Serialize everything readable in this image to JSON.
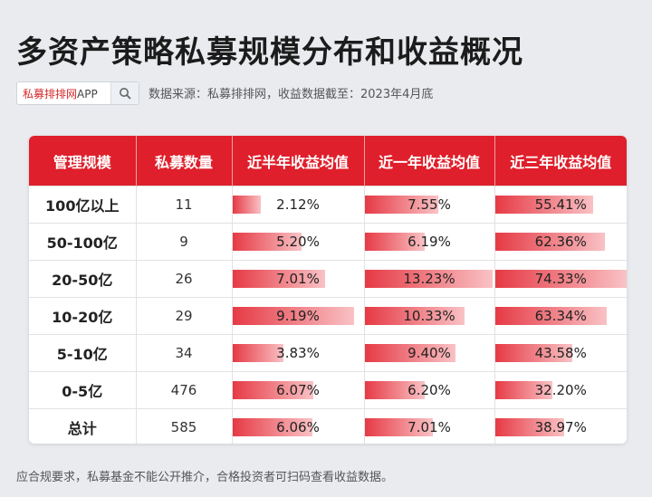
{
  "title": "多资产策略私募规模分布和收益概况",
  "search": {
    "brand": "私募排排网",
    "app": "APP"
  },
  "source": "数据来源：私募排排网，收益数据截至：2023年4月底",
  "table": {
    "headers": [
      "管理规模",
      "私募数量",
      "近半年收益均值",
      "近一年收益均值",
      "近三年收益均值"
    ],
    "rows": [
      {
        "scale": "100亿以上",
        "count": "11",
        "half": "2.12%",
        "one": "7.55%",
        "three": "55.41%"
      },
      {
        "scale": "50-100亿",
        "count": "9",
        "half": "5.20%",
        "one": "6.19%",
        "three": "62.36%"
      },
      {
        "scale": "20-50亿",
        "count": "26",
        "half": "7.01%",
        "one": "13.23%",
        "three": "74.33%"
      },
      {
        "scale": "10-20亿",
        "count": "29",
        "half": "9.19%",
        "one": "10.33%",
        "three": "63.34%"
      },
      {
        "scale": "5-10亿",
        "count": "34",
        "half": "3.83%",
        "one": "9.40%",
        "three": "43.58%"
      },
      {
        "scale": "0-5亿",
        "count": "476",
        "half": "6.07%",
        "one": "6.20%",
        "three": "32.20%"
      },
      {
        "scale": "总计",
        "count": "585",
        "half": "6.06%",
        "one": "7.01%",
        "three": "38.97%"
      }
    ]
  },
  "footer": "应合规要求，私募基金不能公开推介，合格投资者可扫码查看收益数据。"
}
